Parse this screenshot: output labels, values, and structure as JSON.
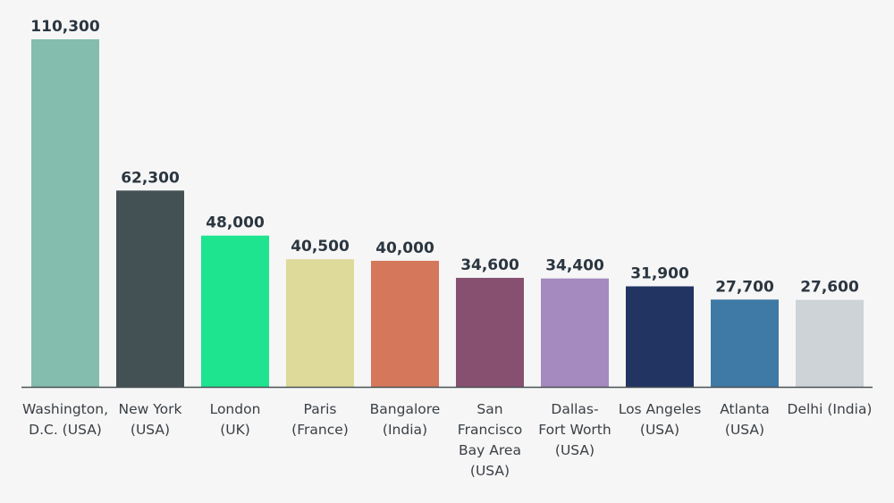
{
  "chart_data": {
    "type": "bar",
    "title": "",
    "xlabel": "",
    "ylabel": "",
    "ylim": [
      0,
      110300
    ],
    "grid": false,
    "categories": [
      [
        "Washington,",
        "D.C. (USA)"
      ],
      [
        "New York",
        "(USA)"
      ],
      [
        "London",
        "(UK)"
      ],
      [
        "Paris",
        "(France)"
      ],
      [
        "Bangalore",
        "(India)"
      ],
      [
        "San",
        "Francisco",
        "Bay Area",
        "(USA)"
      ],
      [
        "Dallas-",
        "Fort Worth",
        "(USA)"
      ],
      [
        "Los Angeles",
        "(USA)"
      ],
      [
        "Atlanta",
        "(USA)"
      ],
      [
        "Delhi (India)"
      ]
    ],
    "values": [
      110300,
      62300,
      48000,
      40500,
      40000,
      34600,
      34400,
      31900,
      27700,
      27600
    ],
    "value_labels": [
      "110,300",
      "62,300",
      "48,000",
      "40,500",
      "40,000",
      "34,600",
      "34,400",
      "31,900",
      "27,700",
      "27,600"
    ],
    "colors": [
      "#84bdad",
      "#445154",
      "#1ee38f",
      "#ddda9a",
      "#d4775a",
      "#875070",
      "#a48abf",
      "#213462",
      "#3e7aa5",
      "#cdd3d6"
    ],
    "axis_color": "#4a5257"
  }
}
